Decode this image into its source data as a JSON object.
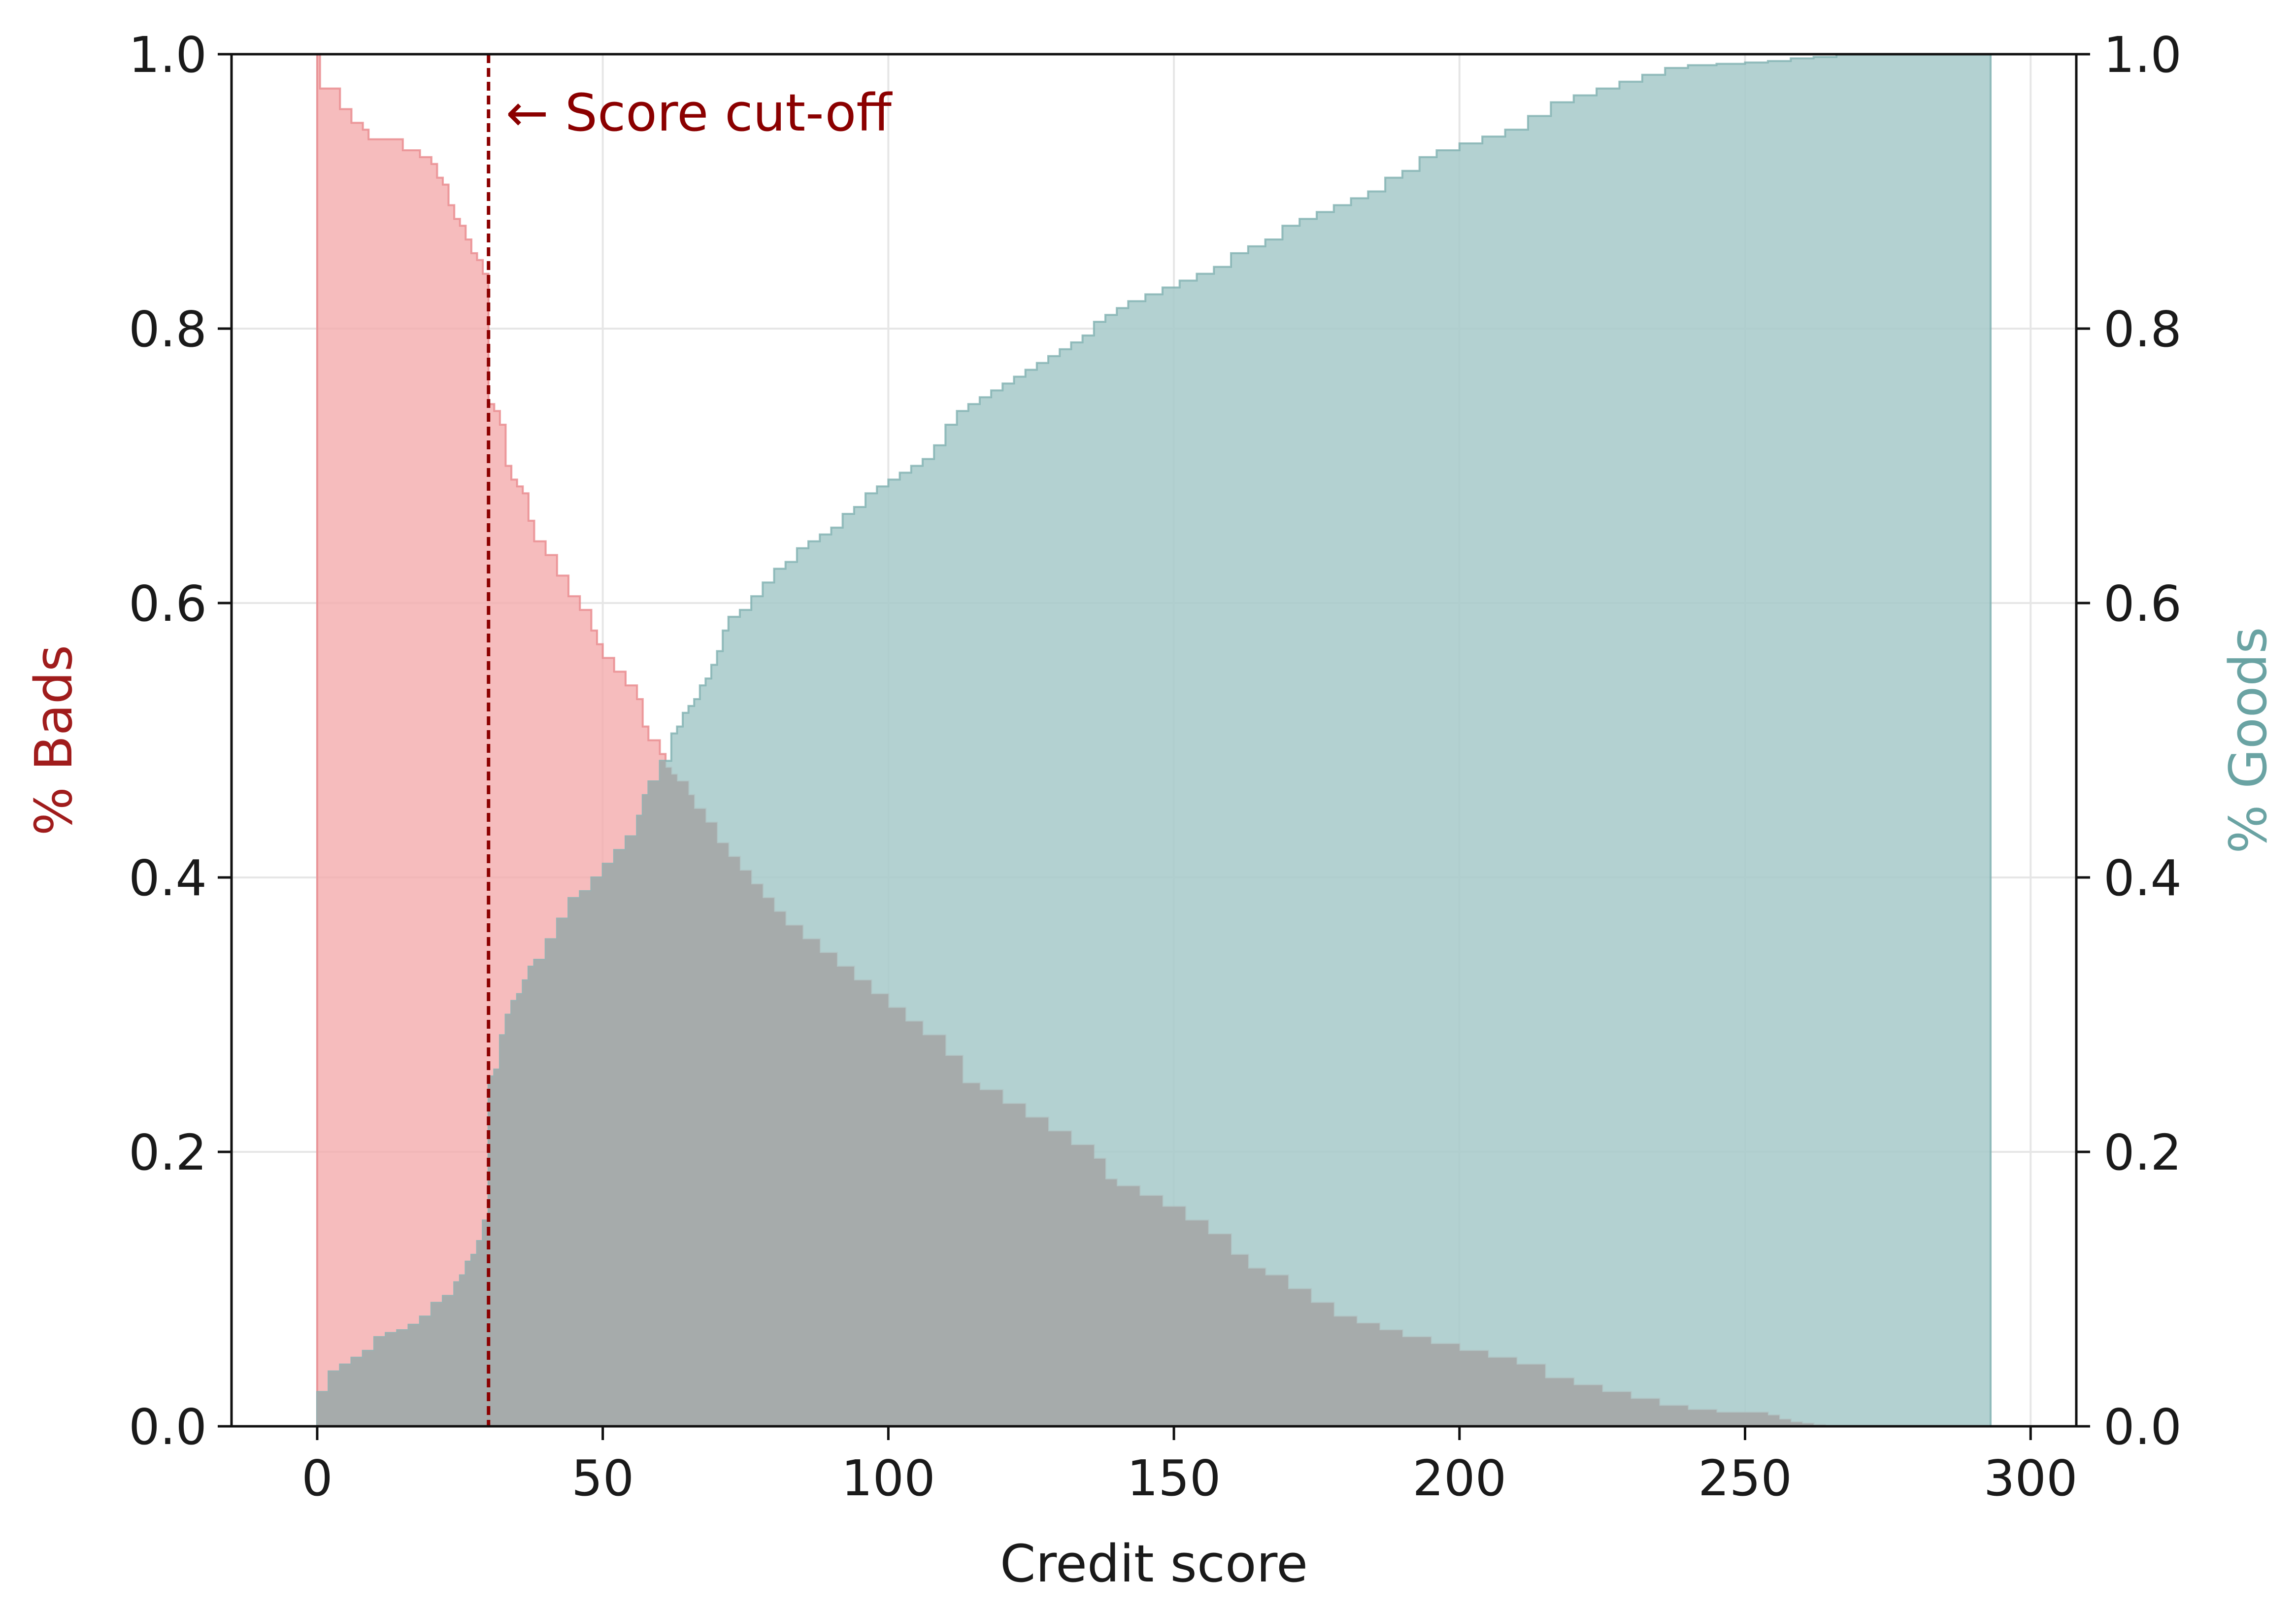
{
  "chart_data": {
    "type": "area",
    "xlabel": "Credit score",
    "ylabel_left": "% Bads",
    "ylabel_right": "% Goods",
    "xlim": [
      -15,
      308
    ],
    "ylim": [
      0,
      1
    ],
    "x_ticks": [
      "0",
      "50",
      "100",
      "150",
      "200",
      "250",
      "300"
    ],
    "y_ticks": [
      "0.0",
      "0.2",
      "0.4",
      "0.6",
      "0.8",
      "1.0"
    ],
    "grid": true,
    "cutoff": {
      "x": 30,
      "label": "← Score cut-off"
    },
    "series": [
      {
        "name": "% Bads",
        "color": "#f4a9ab",
        "axis": "left",
        "points": [
          [
            0,
            1.0
          ],
          [
            0.5,
            0.975
          ],
          [
            4,
            0.96
          ],
          [
            6,
            0.95
          ],
          [
            8,
            0.945
          ],
          [
            9,
            0.938
          ],
          [
            15,
            0.93
          ],
          [
            18,
            0.925
          ],
          [
            20,
            0.92
          ],
          [
            21,
            0.91
          ],
          [
            22,
            0.905
          ],
          [
            23,
            0.89
          ],
          [
            24,
            0.88
          ],
          [
            25,
            0.875
          ],
          [
            26,
            0.865
          ],
          [
            27,
            0.855
          ],
          [
            28,
            0.85
          ],
          [
            29,
            0.84
          ],
          [
            30,
            0.745
          ],
          [
            31,
            0.74
          ],
          [
            32,
            0.73
          ],
          [
            33,
            0.7
          ],
          [
            34,
            0.69
          ],
          [
            35,
            0.685
          ],
          [
            36,
            0.68
          ],
          [
            37,
            0.66
          ],
          [
            38,
            0.645
          ],
          [
            40,
            0.635
          ],
          [
            42,
            0.62
          ],
          [
            44,
            0.605
          ],
          [
            46,
            0.595
          ],
          [
            48,
            0.58
          ],
          [
            49,
            0.57
          ],
          [
            50,
            0.56
          ],
          [
            52,
            0.55
          ],
          [
            54,
            0.54
          ],
          [
            56,
            0.53
          ],
          [
            57,
            0.51
          ],
          [
            58,
            0.5
          ],
          [
            60,
            0.49
          ],
          [
            61,
            0.48
          ],
          [
            62,
            0.475
          ],
          [
            63,
            0.47
          ],
          [
            65,
            0.46
          ],
          [
            66,
            0.45
          ],
          [
            68,
            0.44
          ],
          [
            70,
            0.425
          ],
          [
            72,
            0.415
          ],
          [
            74,
            0.405
          ],
          [
            76,
            0.395
          ],
          [
            78,
            0.385
          ],
          [
            80,
            0.375
          ],
          [
            82,
            0.365
          ],
          [
            85,
            0.355
          ],
          [
            88,
            0.345
          ],
          [
            91,
            0.335
          ],
          [
            94,
            0.325
          ],
          [
            97,
            0.315
          ],
          [
            100,
            0.305
          ],
          [
            103,
            0.295
          ],
          [
            106,
            0.285
          ],
          [
            110,
            0.27
          ],
          [
            113,
            0.25
          ],
          [
            116,
            0.245
          ],
          [
            120,
            0.235
          ],
          [
            124,
            0.225
          ],
          [
            128,
            0.215
          ],
          [
            132,
            0.205
          ],
          [
            136,
            0.195
          ],
          [
            138,
            0.18
          ],
          [
            140,
            0.175
          ],
          [
            144,
            0.168
          ],
          [
            148,
            0.16
          ],
          [
            152,
            0.15
          ],
          [
            156,
            0.14
          ],
          [
            160,
            0.125
          ],
          [
            163,
            0.115
          ],
          [
            166,
            0.11
          ],
          [
            170,
            0.1
          ],
          [
            174,
            0.09
          ],
          [
            178,
            0.08
          ],
          [
            182,
            0.075
          ],
          [
            186,
            0.07
          ],
          [
            190,
            0.065
          ],
          [
            195,
            0.06
          ],
          [
            200,
            0.055
          ],
          [
            205,
            0.05
          ],
          [
            210,
            0.045
          ],
          [
            215,
            0.035
          ],
          [
            220,
            0.03
          ],
          [
            225,
            0.025
          ],
          [
            230,
            0.02
          ],
          [
            235,
            0.015
          ],
          [
            240,
            0.012
          ],
          [
            245,
            0.01
          ],
          [
            250,
            0.01
          ],
          [
            254,
            0.008
          ],
          [
            256,
            0.005
          ],
          [
            258,
            0.003
          ],
          [
            260,
            0.002
          ],
          [
            262,
            0.001
          ],
          [
            264,
            0.0
          ],
          [
            293,
            0.0
          ]
        ]
      },
      {
        "name": "% Goods",
        "color": "#a8cbcb",
        "axis": "right",
        "points": [
          [
            0,
            0.025
          ],
          [
            2,
            0.04
          ],
          [
            4,
            0.045
          ],
          [
            6,
            0.05
          ],
          [
            8,
            0.055
          ],
          [
            10,
            0.065
          ],
          [
            12,
            0.068
          ],
          [
            14,
            0.07
          ],
          [
            16,
            0.074
          ],
          [
            18,
            0.08
          ],
          [
            20,
            0.09
          ],
          [
            22,
            0.095
          ],
          [
            24,
            0.105
          ],
          [
            25,
            0.11
          ],
          [
            26,
            0.12
          ],
          [
            27,
            0.125
          ],
          [
            28,
            0.135
          ],
          [
            29,
            0.15
          ],
          [
            30,
            0.255
          ],
          [
            31,
            0.26
          ],
          [
            32,
            0.285
          ],
          [
            33,
            0.3
          ],
          [
            34,
            0.31
          ],
          [
            35,
            0.315
          ],
          [
            36,
            0.325
          ],
          [
            37,
            0.335
          ],
          [
            38,
            0.34
          ],
          [
            40,
            0.355
          ],
          [
            42,
            0.37
          ],
          [
            44,
            0.385
          ],
          [
            46,
            0.39
          ],
          [
            48,
            0.4
          ],
          [
            50,
            0.41
          ],
          [
            52,
            0.42
          ],
          [
            54,
            0.43
          ],
          [
            56,
            0.445
          ],
          [
            57,
            0.46
          ],
          [
            58,
            0.47
          ],
          [
            60,
            0.485
          ],
          [
            62,
            0.505
          ],
          [
            63,
            0.51
          ],
          [
            64,
            0.52
          ],
          [
            65,
            0.525
          ],
          [
            66,
            0.53
          ],
          [
            67,
            0.54
          ],
          [
            68,
            0.545
          ],
          [
            69,
            0.555
          ],
          [
            70,
            0.565
          ],
          [
            71,
            0.58
          ],
          [
            72,
            0.59
          ],
          [
            74,
            0.595
          ],
          [
            76,
            0.605
          ],
          [
            78,
            0.615
          ],
          [
            80,
            0.625
          ],
          [
            82,
            0.63
          ],
          [
            84,
            0.64
          ],
          [
            86,
            0.645
          ],
          [
            88,
            0.65
          ],
          [
            90,
            0.655
          ],
          [
            92,
            0.665
          ],
          [
            94,
            0.67
          ],
          [
            96,
            0.68
          ],
          [
            98,
            0.685
          ],
          [
            100,
            0.69
          ],
          [
            102,
            0.695
          ],
          [
            104,
            0.7
          ],
          [
            106,
            0.705
          ],
          [
            108,
            0.715
          ],
          [
            110,
            0.73
          ],
          [
            112,
            0.74
          ],
          [
            114,
            0.745
          ],
          [
            116,
            0.75
          ],
          [
            118,
            0.755
          ],
          [
            120,
            0.76
          ],
          [
            122,
            0.765
          ],
          [
            124,
            0.77
          ],
          [
            126,
            0.775
          ],
          [
            128,
            0.78
          ],
          [
            130,
            0.785
          ],
          [
            132,
            0.79
          ],
          [
            134,
            0.795
          ],
          [
            136,
            0.805
          ],
          [
            138,
            0.81
          ],
          [
            140,
            0.815
          ],
          [
            142,
            0.82
          ],
          [
            145,
            0.825
          ],
          [
            148,
            0.83
          ],
          [
            151,
            0.835
          ],
          [
            154,
            0.84
          ],
          [
            157,
            0.845
          ],
          [
            160,
            0.855
          ],
          [
            163,
            0.86
          ],
          [
            166,
            0.865
          ],
          [
            169,
            0.875
          ],
          [
            172,
            0.88
          ],
          [
            175,
            0.885
          ],
          [
            178,
            0.89
          ],
          [
            181,
            0.895
          ],
          [
            184,
            0.9
          ],
          [
            187,
            0.91
          ],
          [
            190,
            0.915
          ],
          [
            193,
            0.925
          ],
          [
            196,
            0.93
          ],
          [
            200,
            0.935
          ],
          [
            204,
            0.94
          ],
          [
            208,
            0.945
          ],
          [
            212,
            0.955
          ],
          [
            216,
            0.965
          ],
          [
            220,
            0.97
          ],
          [
            224,
            0.975
          ],
          [
            228,
            0.98
          ],
          [
            232,
            0.985
          ],
          [
            236,
            0.99
          ],
          [
            240,
            0.992
          ],
          [
            245,
            0.993
          ],
          [
            250,
            0.994
          ],
          [
            254,
            0.995
          ],
          [
            258,
            0.997
          ],
          [
            262,
            0.998
          ],
          [
            266,
            1.0
          ],
          [
            293,
            1.0
          ]
        ]
      }
    ]
  }
}
